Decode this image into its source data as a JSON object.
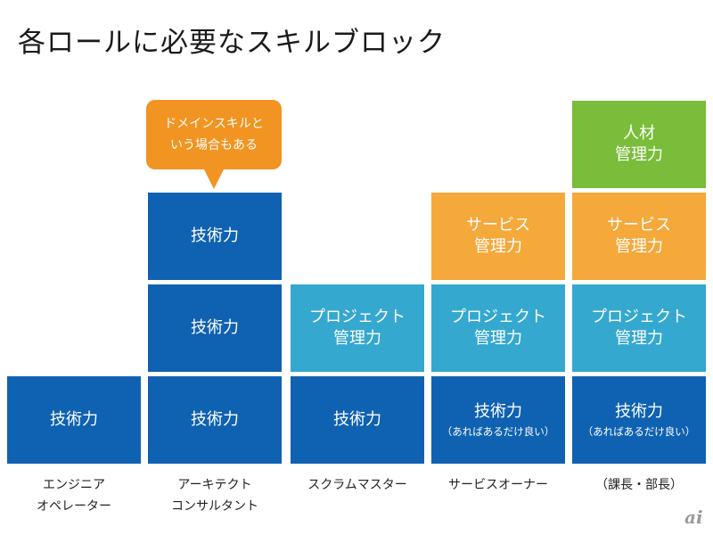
{
  "title": "各ロールに必要なスキルブロック",
  "colors": {
    "tech": "#0f62b1",
    "project": "#35a8cf",
    "service": "#f5a93a",
    "people": "#79bd3a",
    "callout": "#f29421"
  },
  "callout": {
    "text": "ドメインスキルと\nいう場合もある"
  },
  "skills": {
    "tech": "技術力",
    "tech_note": "（あればあるだけ良い）",
    "project": "プロジェクト\n管理力",
    "service": "サービス\n管理力",
    "people": "人材\n管理力"
  },
  "roles": [
    {
      "label": "エンジニア\nオペレーター"
    },
    {
      "label": "アーキテクト\nコンサルタント"
    },
    {
      "label": "スクラムマスター"
    },
    {
      "label": "サービスオーナー"
    },
    {
      "label": "（課長・部長）"
    }
  ],
  "logo": "ai"
}
